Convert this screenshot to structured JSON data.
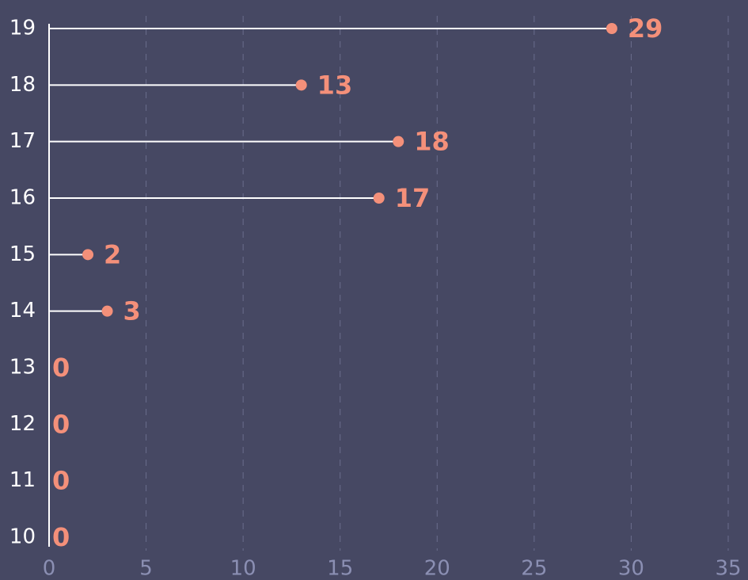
{
  "chart_data": {
    "type": "lollipop",
    "orientation": "horizontal",
    "categories": [
      "10",
      "11",
      "12",
      "13",
      "14",
      "15",
      "16",
      "17",
      "18",
      "19"
    ],
    "values": [
      0,
      0,
      0,
      0,
      3,
      2,
      17,
      18,
      13,
      29
    ],
    "color": "#f4907a",
    "stem_color": "#ffffff",
    "xlim": [
      0,
      35
    ],
    "xticks": [
      0,
      5,
      10,
      15,
      20,
      25,
      30,
      35
    ],
    "grid": true
  }
}
